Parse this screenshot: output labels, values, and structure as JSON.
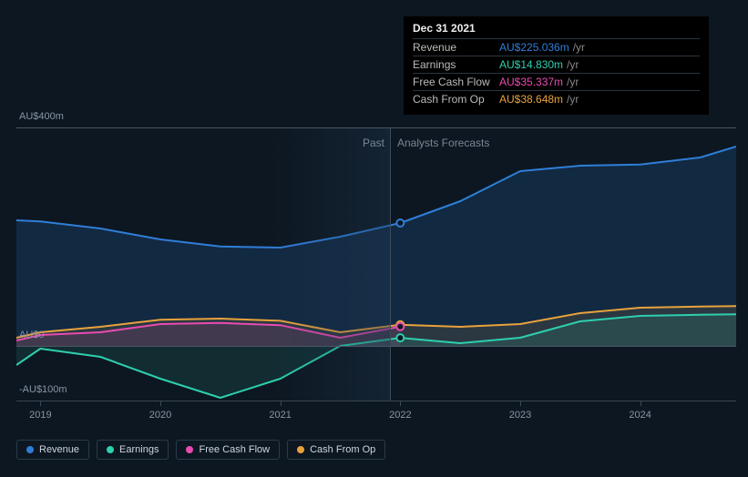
{
  "chart": {
    "type": "line-area",
    "background_color": "#0d1721",
    "grid_color": "#3a4a5a",
    "text_color": "#8a95a5",
    "currency_prefix": "AU$",
    "y_axis": {
      "min": -100,
      "max": 400,
      "ticks": [
        {
          "value": 400,
          "label": "AU$400m"
        },
        {
          "value": 0,
          "label": "AU$0"
        },
        {
          "value": -100,
          "label": "-AU$100m"
        }
      ]
    },
    "x_axis": {
      "years": [
        2019,
        2020,
        2021,
        2022,
        2023,
        2024
      ],
      "min": 2018.8,
      "max": 2024.8
    },
    "past_label": "Past",
    "forecast_label": "Analysts Forecasts",
    "divider_year": 2022,
    "series": {
      "revenue": {
        "label": "Revenue",
        "color": "#2f7ed8",
        "fill": "rgba(47,126,216,0.18)",
        "data": [
          {
            "x": 2018.8,
            "y": 230
          },
          {
            "x": 2019.0,
            "y": 228
          },
          {
            "x": 2019.5,
            "y": 215
          },
          {
            "x": 2020.0,
            "y": 195
          },
          {
            "x": 2020.5,
            "y": 182
          },
          {
            "x": 2021.0,
            "y": 180
          },
          {
            "x": 2021.5,
            "y": 200
          },
          {
            "x": 2022.0,
            "y": 225.036
          },
          {
            "x": 2022.5,
            "y": 265
          },
          {
            "x": 2023.0,
            "y": 320
          },
          {
            "x": 2023.5,
            "y": 330
          },
          {
            "x": 2024.0,
            "y": 332
          },
          {
            "x": 2024.5,
            "y": 345
          },
          {
            "x": 2024.8,
            "y": 365
          }
        ]
      },
      "earnings": {
        "label": "Earnings",
        "color": "#2ecfae",
        "fill": "rgba(46,207,174,0.12)",
        "data": [
          {
            "x": 2018.8,
            "y": -35
          },
          {
            "x": 2019.0,
            "y": -5
          },
          {
            "x": 2019.5,
            "y": -20
          },
          {
            "x": 2020.0,
            "y": -60
          },
          {
            "x": 2020.5,
            "y": -95
          },
          {
            "x": 2021.0,
            "y": -60
          },
          {
            "x": 2021.5,
            "y": 0
          },
          {
            "x": 2022.0,
            "y": 14.83
          },
          {
            "x": 2022.5,
            "y": 5
          },
          {
            "x": 2023.0,
            "y": 15
          },
          {
            "x": 2023.5,
            "y": 45
          },
          {
            "x": 2024.0,
            "y": 55
          },
          {
            "x": 2024.5,
            "y": 57
          },
          {
            "x": 2024.8,
            "y": 58
          }
        ]
      },
      "free_cash_flow": {
        "label": "Free Cash Flow",
        "color": "#e84bb0",
        "fill": "rgba(232,75,176,0.12)",
        "data": [
          {
            "x": 2018.8,
            "y": 10
          },
          {
            "x": 2019.0,
            "y": 20
          },
          {
            "x": 2019.5,
            "y": 25
          },
          {
            "x": 2020.0,
            "y": 40
          },
          {
            "x": 2020.5,
            "y": 42
          },
          {
            "x": 2021.0,
            "y": 38
          },
          {
            "x": 2021.5,
            "y": 15
          },
          {
            "x": 2022.0,
            "y": 35.337
          }
        ]
      },
      "cash_from_op": {
        "label": "Cash From Op",
        "color": "#e8a23c",
        "fill": "rgba(232,162,60,0.12)",
        "data": [
          {
            "x": 2018.8,
            "y": 15
          },
          {
            "x": 2019.0,
            "y": 25
          },
          {
            "x": 2019.5,
            "y": 35
          },
          {
            "x": 2020.0,
            "y": 48
          },
          {
            "x": 2020.5,
            "y": 50
          },
          {
            "x": 2021.0,
            "y": 46
          },
          {
            "x": 2021.5,
            "y": 25
          },
          {
            "x": 2022.0,
            "y": 38.648
          },
          {
            "x": 2022.5,
            "y": 35
          },
          {
            "x": 2023.0,
            "y": 40
          },
          {
            "x": 2023.5,
            "y": 60
          },
          {
            "x": 2024.0,
            "y": 70
          },
          {
            "x": 2024.5,
            "y": 72
          },
          {
            "x": 2024.8,
            "y": 73
          }
        ]
      }
    },
    "marker_x": 2022,
    "markers": [
      {
        "series": "revenue",
        "y": 225.036
      },
      {
        "series": "cash_from_op",
        "y": 38.648
      },
      {
        "series": "free_cash_flow",
        "y": 35.337
      },
      {
        "series": "earnings",
        "y": 14.83
      }
    ]
  },
  "tooltip": {
    "date": "Dec 31 2021",
    "unit": "/yr",
    "rows": [
      {
        "metric": "Revenue",
        "value": "AU$225.036m",
        "color": "#2f7ed8"
      },
      {
        "metric": "Earnings",
        "value": "AU$14.830m",
        "color": "#2ecfae"
      },
      {
        "metric": "Free Cash Flow",
        "value": "AU$35.337m",
        "color": "#e84bb0"
      },
      {
        "metric": "Cash From Op",
        "value": "AU$38.648m",
        "color": "#e8a23c"
      }
    ]
  },
  "legend": [
    {
      "label": "Revenue",
      "color": "#2f7ed8"
    },
    {
      "label": "Earnings",
      "color": "#2ecfae"
    },
    {
      "label": "Free Cash Flow",
      "color": "#e84bb0"
    },
    {
      "label": "Cash From Op",
      "color": "#e8a23c"
    }
  ]
}
